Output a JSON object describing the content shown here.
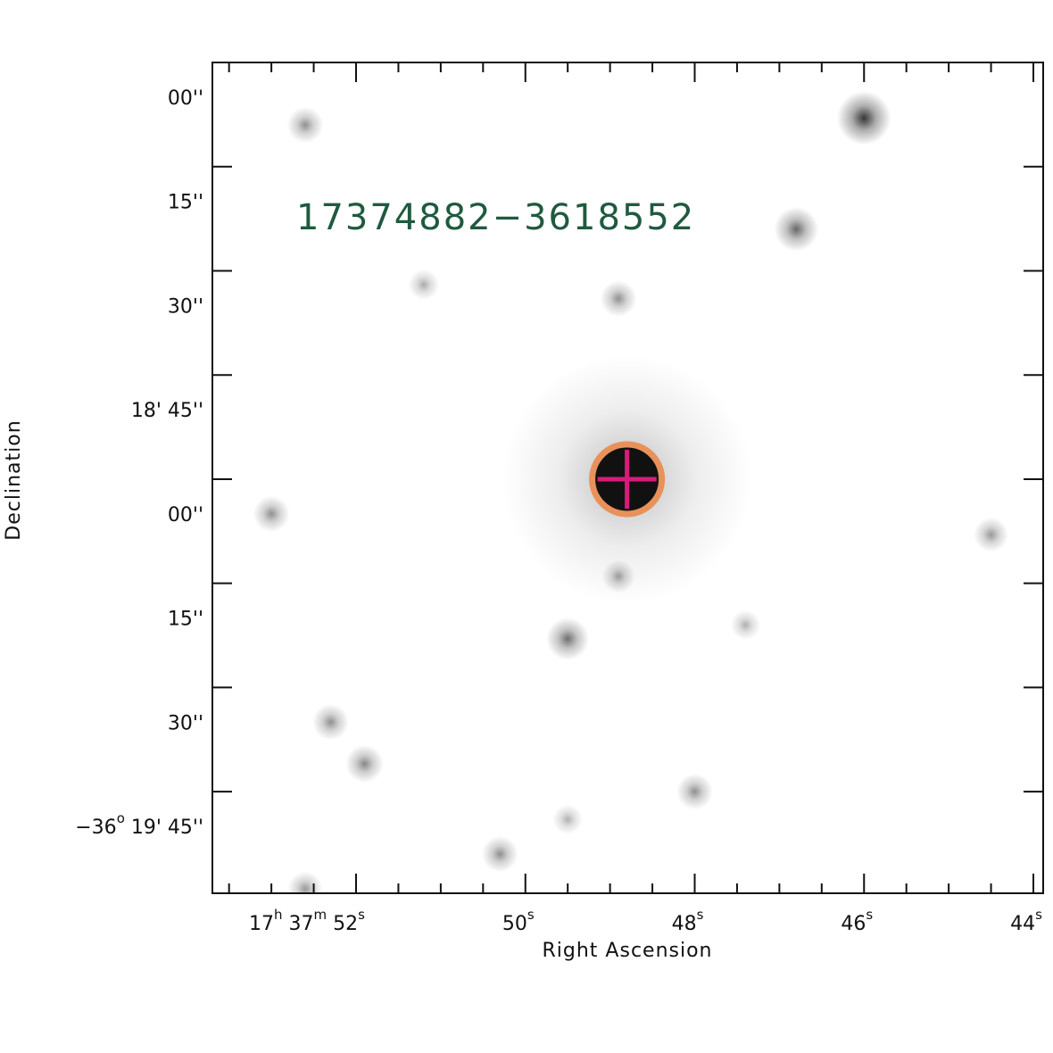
{
  "source_id": "17374882−3618552",
  "axes": {
    "xlabel": "Right Ascension",
    "ylabel": "Declination",
    "x_ticks": [
      {
        "sec": 52,
        "parts": [
          {
            "t": "17"
          },
          {
            "s": "h"
          },
          {
            "t": " 37"
          },
          {
            "s": "m"
          },
          {
            "t": " 52"
          },
          {
            "s": "s"
          }
        ]
      },
      {
        "sec": 50,
        "parts": [
          {
            "t": "50"
          },
          {
            "s": "s"
          }
        ]
      },
      {
        "sec": 48,
        "parts": [
          {
            "t": "48"
          },
          {
            "s": "s"
          }
        ]
      },
      {
        "sec": 46,
        "parts": [
          {
            "t": "46"
          },
          {
            "s": "s"
          }
        ]
      },
      {
        "sec": 44,
        "parts": [
          {
            "t": "44"
          },
          {
            "s": "s"
          }
        ]
      }
    ],
    "y_ticks": [
      {
        "arcsec": 0,
        "parts": [
          {
            "t": "00''"
          }
        ]
      },
      {
        "arcsec": 15,
        "parts": [
          {
            "t": "15''"
          }
        ]
      },
      {
        "arcsec": 30,
        "parts": [
          {
            "t": "30''"
          }
        ]
      },
      {
        "arcsec": 45,
        "parts": [
          {
            "t": "18' 45''"
          }
        ]
      },
      {
        "arcsec": 60,
        "parts": [
          {
            "t": "00''"
          }
        ]
      },
      {
        "arcsec": 75,
        "parts": [
          {
            "t": "15''"
          }
        ]
      },
      {
        "arcsec": 90,
        "parts": [
          {
            "t": "30''"
          }
        ]
      },
      {
        "arcsec": 105,
        "parts": [
          {
            "t": "−36"
          },
          {
            "s": "o"
          },
          {
            "t": " 19' 45''"
          }
        ]
      }
    ]
  },
  "target": {
    "ra_sec": 48.8,
    "dec_arcsec": 55.0
  },
  "stars": [
    {
      "ra_sec": 52.6,
      "dec_arcsec": 4,
      "strength": 0.35
    },
    {
      "ra_sec": 46.0,
      "dec_arcsec": 3,
      "strength": 0.9
    },
    {
      "ra_sec": 46.8,
      "dec_arcsec": 19,
      "strength": 0.6
    },
    {
      "ra_sec": 48.9,
      "dec_arcsec": 29,
      "strength": 0.35
    },
    {
      "ra_sec": 51.2,
      "dec_arcsec": 27,
      "strength": 0.18
    },
    {
      "ra_sec": 53.0,
      "dec_arcsec": 60,
      "strength": 0.35
    },
    {
      "ra_sec": 44.5,
      "dec_arcsec": 63,
      "strength": 0.3
    },
    {
      "ra_sec": 48.9,
      "dec_arcsec": 69,
      "strength": 0.25
    },
    {
      "ra_sec": 49.5,
      "dec_arcsec": 78,
      "strength": 0.55
    },
    {
      "ra_sec": 47.4,
      "dec_arcsec": 76,
      "strength": 0.15
    },
    {
      "ra_sec": 52.3,
      "dec_arcsec": 90,
      "strength": 0.35
    },
    {
      "ra_sec": 51.9,
      "dec_arcsec": 96,
      "strength": 0.4
    },
    {
      "ra_sec": 48.0,
      "dec_arcsec": 100,
      "strength": 0.35
    },
    {
      "ra_sec": 49.5,
      "dec_arcsec": 104,
      "strength": 0.15
    },
    {
      "ra_sec": 50.3,
      "dec_arcsec": 109,
      "strength": 0.35
    },
    {
      "ra_sec": 52.6,
      "dec_arcsec": 114,
      "strength": 0.3
    }
  ],
  "colors": {
    "halo": "#111111",
    "ring": "#e8915a",
    "cross": "#d81b7a",
    "label": "#1f5a3f"
  }
}
